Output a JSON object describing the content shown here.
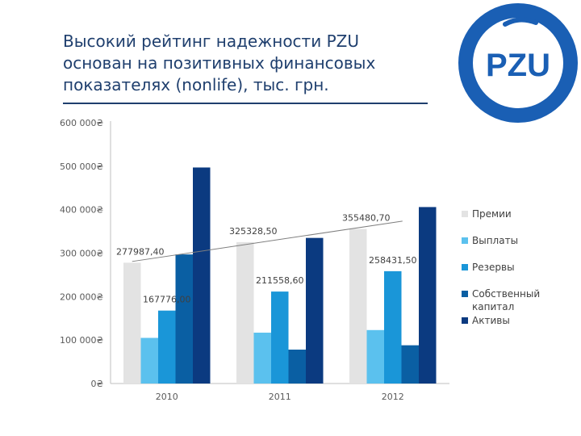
{
  "slide": {
    "title_lines": [
      "Высокий рейтинг надежности PZU",
      "основан на позитивных финансовых",
      "показателях (nonlife), тыс. грн."
    ],
    "logo_text": "PZU"
  },
  "chart_data": {
    "type": "bar",
    "categories": [
      "2010",
      "2011",
      "2012"
    ],
    "series": [
      {
        "name": "Премии",
        "color": "#e3e3e3",
        "values": [
          277987.4,
          325328.5,
          355480.7
        ]
      },
      {
        "name": "Выплаты",
        "color": "#5bc1ee",
        "values": [
          105000,
          117000,
          123000
        ]
      },
      {
        "name": "Резервы",
        "color": "#1a96d8",
        "values": [
          167776.0,
          211558.6,
          258431.5
        ]
      },
      {
        "name": "Собственный капитал",
        "color": "#0a5fa3",
        "values": [
          297000,
          78000,
          88000
        ]
      },
      {
        "name": "Активы",
        "color": "#0b3a80",
        "values": [
          497000,
          335000,
          406000
        ]
      }
    ],
    "y_ticks": [
      "0₴",
      "100 000₴",
      "200 000₴",
      "300 000₴",
      "400 000₴",
      "500 000₴",
      "600 000₴"
    ],
    "ylim": [
      0,
      600000
    ],
    "data_labels": [
      {
        "text": "277987,40",
        "category": "2010",
        "series": "Премии"
      },
      {
        "text": "167776,00",
        "category": "2010",
        "series": "Резервы"
      },
      {
        "text": "325328,50",
        "category": "2011",
        "series": "Премии"
      },
      {
        "text": "211558,60",
        "category": "2011",
        "series": "Резервы"
      },
      {
        "text": "355480,70",
        "category": "2012",
        "series": "Премии"
      },
      {
        "text": "258431,50",
        "category": "2012",
        "series": "Резервы"
      }
    ],
    "trendline": {
      "series": "Премии",
      "shown": true
    },
    "grid": false,
    "legend": "right",
    "colors": {
      "title": "#1f3f6e",
      "axis_text": "#5a5a5a",
      "trend": "#7f7f7f",
      "logo": "#1a5fb4"
    }
  }
}
